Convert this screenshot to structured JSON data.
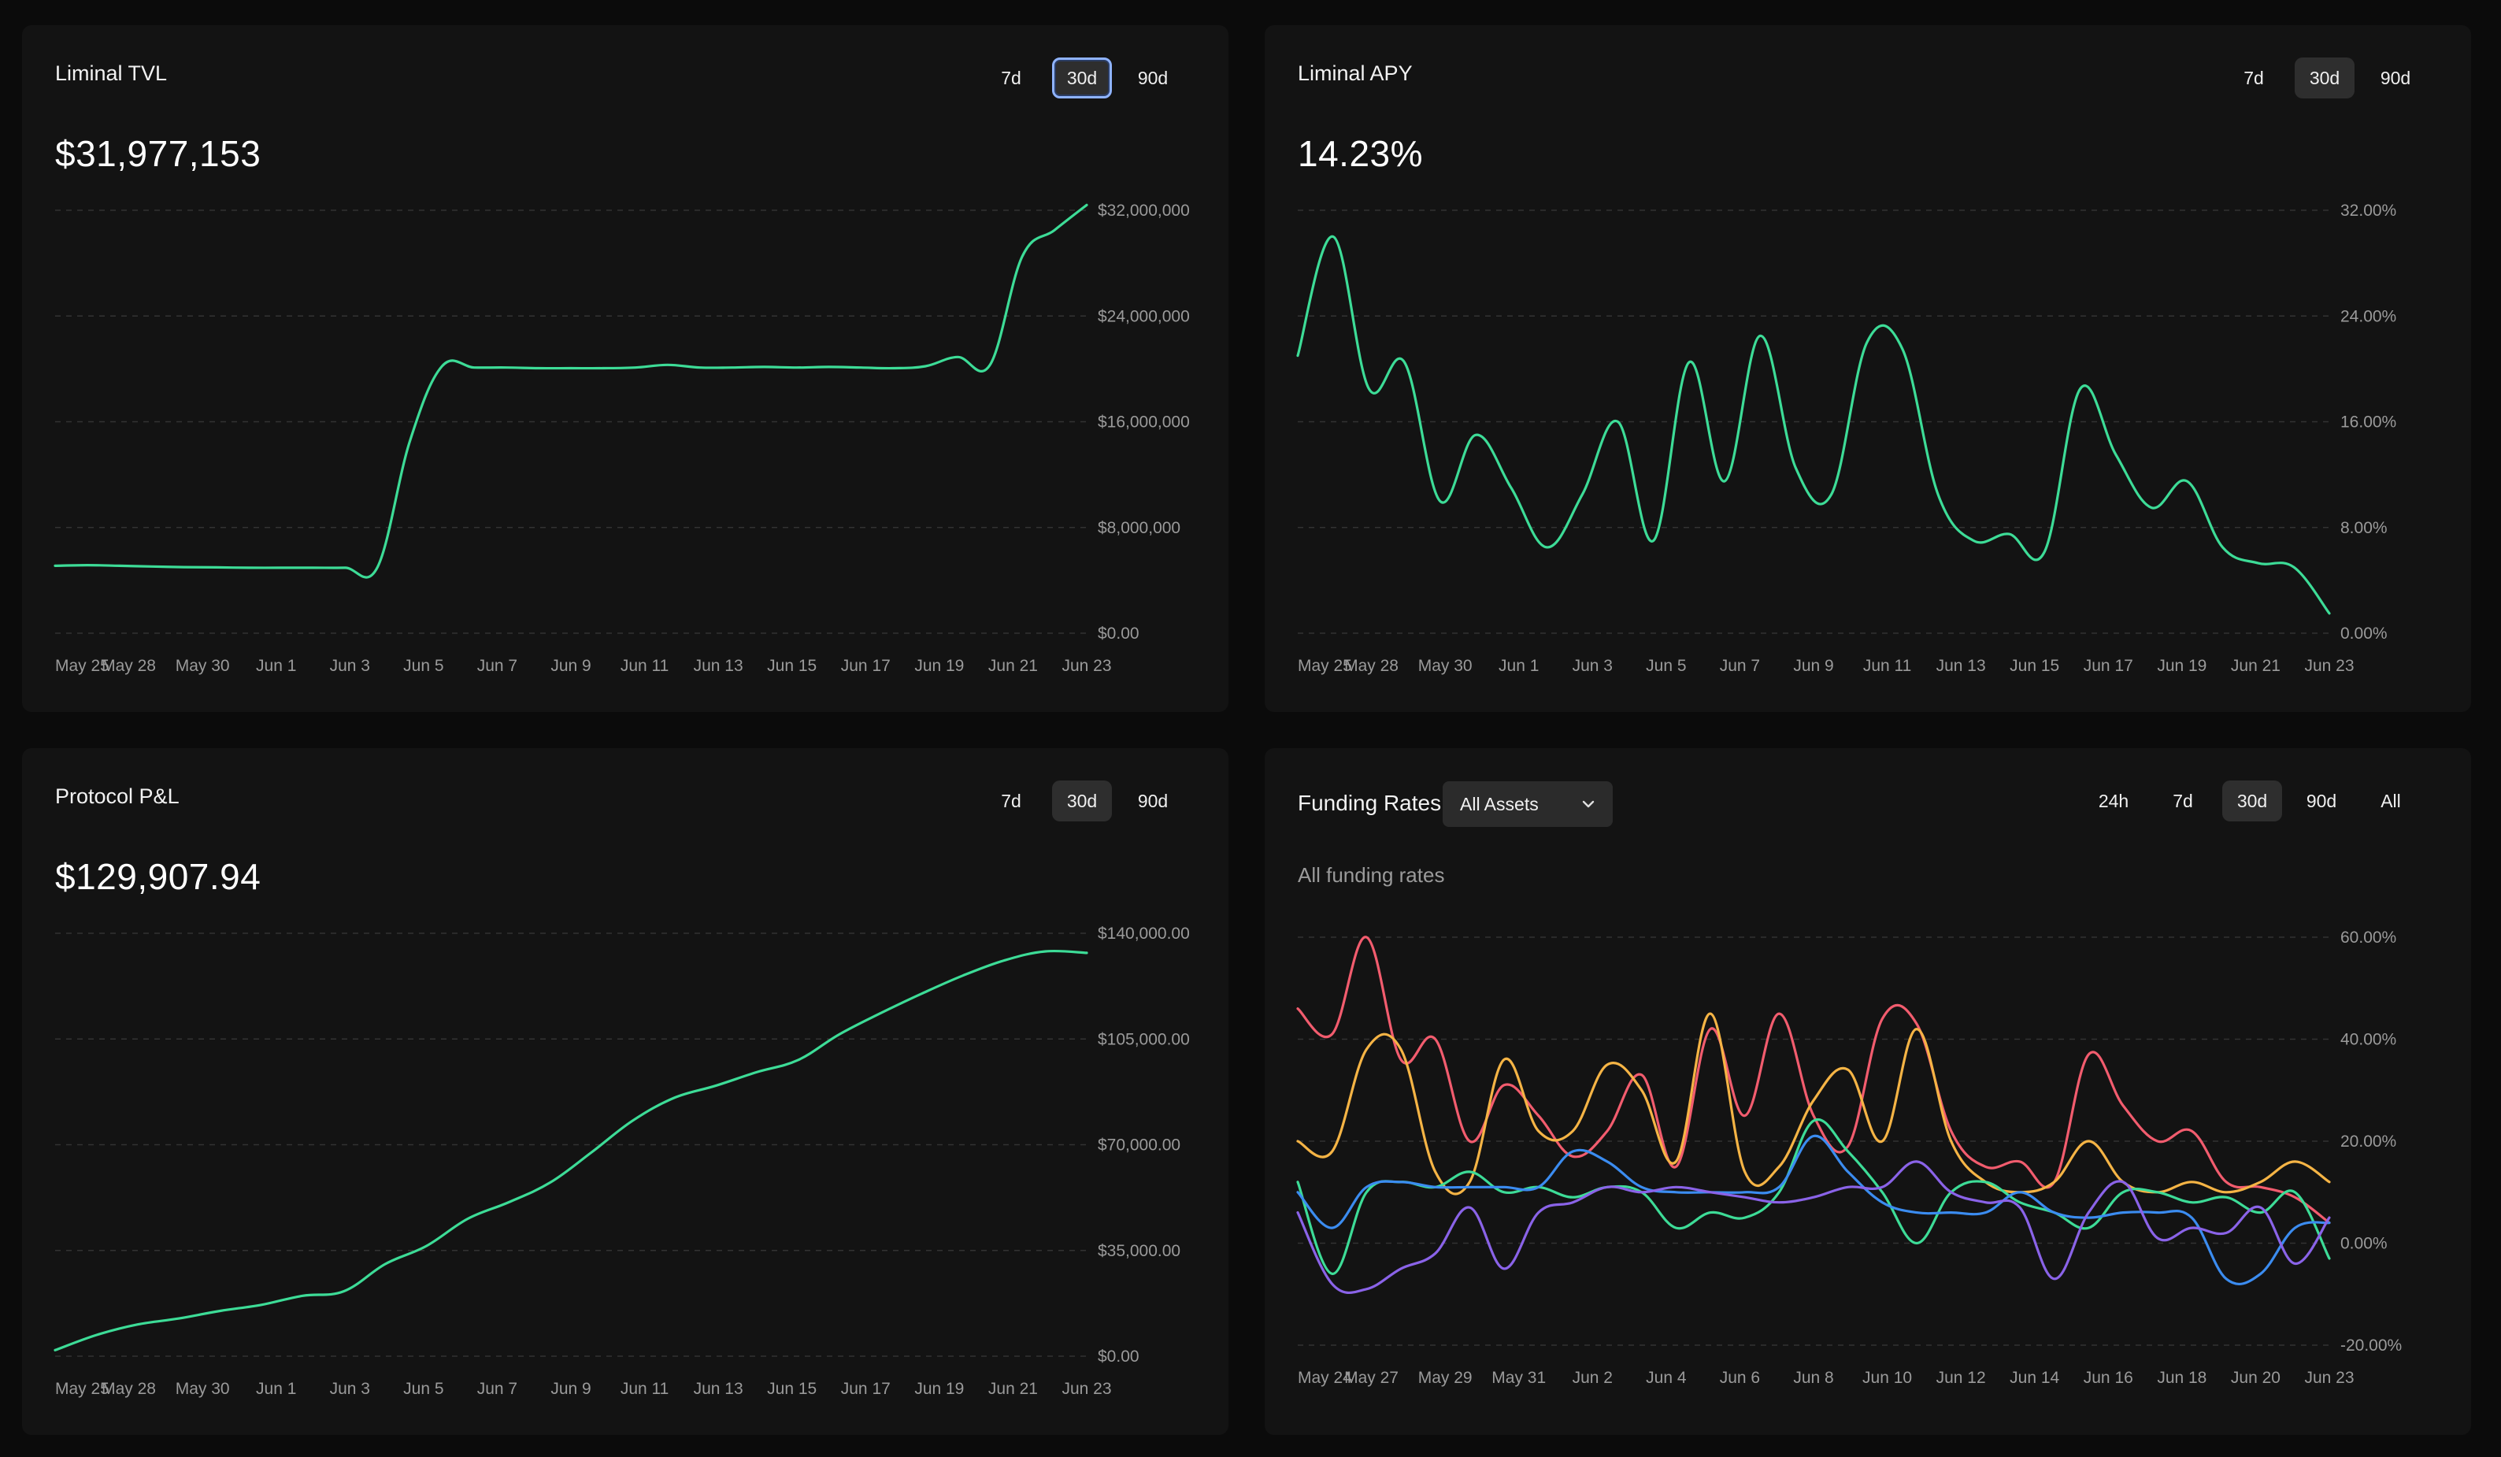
{
  "panels": {
    "tvl": {
      "title": "Liminal TVL",
      "value": "$31,977,153",
      "ranges": [
        "7d",
        "30d",
        "90d"
      ],
      "active_range": "30d"
    },
    "apy": {
      "title": "Liminal APY",
      "value": "14.23%",
      "ranges": [
        "7d",
        "30d",
        "90d"
      ],
      "active_range": "30d"
    },
    "pnl": {
      "title": "Protocol P&L",
      "value": "$129,907.94",
      "ranges": [
        "7d",
        "30d",
        "90d"
      ],
      "active_range": "30d"
    },
    "funding": {
      "title": "Funding Rates",
      "select_value": "All Assets",
      "subtitle": "All funding rates",
      "ranges": [
        "24h",
        "7d",
        "30d",
        "90d",
        "All"
      ],
      "active_range": "30d"
    }
  },
  "chart_data": [
    {
      "id": "tvl",
      "type": "line",
      "title": "Liminal TVL",
      "color": "#3ddc97",
      "x_ticks": [
        "May 25",
        "May 28",
        "May 30",
        "Jun 1",
        "Jun 3",
        "Jun 5",
        "Jun 7",
        "Jun 9",
        "Jun 11",
        "Jun 13",
        "Jun 15",
        "Jun 17",
        "Jun 19",
        "Jun 21",
        "Jun 23"
      ],
      "y_ticks": [
        "$32,000,000",
        "$24,000,000",
        "$16,000,000",
        "$8,000,000",
        "$0.00"
      ],
      "ylim": [
        0,
        32000000
      ],
      "grid": true,
      "values": [
        5100000,
        5150000,
        5100000,
        5050000,
        5000000,
        4980000,
        4950000,
        4950000,
        4950000,
        4950000,
        5000000,
        14500000,
        20200000,
        20100000,
        20100000,
        20050000,
        20050000,
        20050000,
        20100000,
        20300000,
        20100000,
        20100000,
        20150000,
        20100000,
        20150000,
        20100000,
        20050000,
        20200000,
        20900000,
        20300000,
        28500000,
        30500000,
        32400000
      ]
    },
    {
      "id": "apy",
      "type": "line",
      "title": "Liminal APY",
      "color": "#3ddc97",
      "x_ticks": [
        "May 25",
        "May 28",
        "May 30",
        "Jun 1",
        "Jun 3",
        "Jun 5",
        "Jun 7",
        "Jun 9",
        "Jun 11",
        "Jun 13",
        "Jun 15",
        "Jun 17",
        "Jun 19",
        "Jun 21",
        "Jun 23"
      ],
      "y_ticks": [
        "32.00%",
        "24.00%",
        "16.00%",
        "8.00%",
        "0.00%"
      ],
      "ylim": [
        0,
        32
      ],
      "grid": true,
      "values": [
        21,
        30,
        18.5,
        20.5,
        10,
        15,
        11,
        6.5,
        10.5,
        16,
        7,
        20.5,
        11.5,
        22.5,
        12.5,
        10.5,
        22,
        21.5,
        10.5,
        7,
        7.5,
        6.2,
        18.5,
        13.5,
        9.5,
        11.5,
        6.5,
        5.3,
        5,
        1.5
      ]
    },
    {
      "id": "pnl",
      "type": "line",
      "title": "Protocol P&L",
      "color": "#3ddc97",
      "x_ticks": [
        "May 25",
        "May 28",
        "May 30",
        "Jun 1",
        "Jun 3",
        "Jun 5",
        "Jun 7",
        "Jun 9",
        "Jun 11",
        "Jun 13",
        "Jun 15",
        "Jun 17",
        "Jun 19",
        "Jun 21",
        "Jun 23"
      ],
      "y_ticks": [
        "$140,000.00",
        "$105,000.00",
        "$70,000.00",
        "$35,000.00",
        "$0.00"
      ],
      "ylim": [
        0,
        140000
      ],
      "grid": true,
      "values": [
        2000,
        7000,
        10500,
        12500,
        15000,
        17000,
        20000,
        21500,
        30500,
        36500,
        45500,
        51000,
        57500,
        67500,
        78000,
        85500,
        89500,
        94000,
        98000,
        106500,
        113500,
        120000,
        126000,
        131000,
        134000,
        133500
      ]
    },
    {
      "id": "funding",
      "type": "line",
      "title": "Funding Rates",
      "subtitle": "All funding rates",
      "x_ticks": [
        "May 24",
        "May 27",
        "May 29",
        "May 31",
        "Jun 2",
        "Jun 4",
        "Jun 6",
        "Jun 8",
        "Jun 10",
        "Jun 12",
        "Jun 14",
        "Jun 16",
        "Jun 18",
        "Jun 20",
        "Jun 23"
      ],
      "y_ticks": [
        "60.00%",
        "40.00%",
        "20.00%",
        "0.00%",
        "-20.00%"
      ],
      "ylim": [
        -20,
        60
      ],
      "grid": true,
      "series": [
        {
          "color": "#f25c6e",
          "values": [
            46,
            41,
            60,
            36,
            40,
            20,
            31,
            25,
            17,
            22,
            33,
            15,
            42,
            25,
            45,
            25,
            19,
            44,
            43,
            22,
            15,
            16,
            12,
            37,
            27,
            20,
            22,
            12,
            11,
            9,
            4
          ]
        },
        {
          "color": "#f5b445",
          "values": [
            20,
            18,
            38,
            38,
            14,
            12,
            36,
            22,
            22,
            35,
            30,
            16,
            45,
            14,
            15,
            28,
            34,
            20,
            42,
            20,
            12,
            10,
            12,
            20,
            12,
            10,
            12,
            10,
            12,
            16,
            12
          ]
        },
        {
          "color": "#3ddc97",
          "values": [
            12,
            -6,
            10,
            12,
            11,
            14,
            10,
            11,
            9,
            11,
            10,
            3,
            6,
            5,
            10,
            24,
            18,
            10,
            0,
            10,
            12,
            8,
            6,
            3,
            10,
            10,
            8,
            9,
            6,
            10,
            -3
          ]
        },
        {
          "color": "#3b8cf0",
          "values": [
            10,
            3,
            11,
            12,
            11,
            11,
            11,
            11,
            18,
            16,
            11,
            10,
            10,
            10,
            11,
            21,
            14,
            8,
            6,
            6,
            6,
            10,
            6,
            5,
            6,
            6,
            5,
            -7,
            -6,
            3,
            4
          ]
        },
        {
          "color": "#8a63e8",
          "values": [
            6,
            -8,
            -9,
            -5,
            -2,
            7,
            -5,
            6,
            8,
            11,
            10,
            11,
            10,
            9,
            8,
            9,
            11,
            11,
            16,
            10,
            8,
            7,
            -7,
            6,
            12,
            1,
            3,
            2,
            7,
            -4,
            5
          ]
        }
      ]
    }
  ]
}
